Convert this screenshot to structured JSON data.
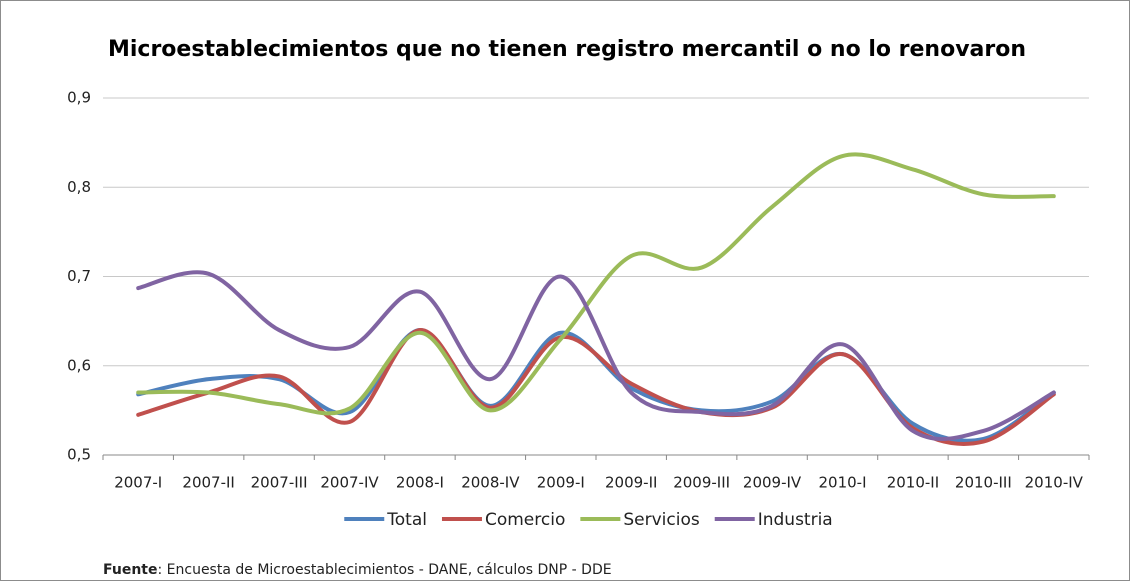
{
  "chart_data": {
    "type": "line",
    "title": "Microestablecimientos que no tienen registro mercantil o no lo renovaron",
    "categories": [
      "2007-I",
      "2007-II",
      "2007-III",
      "2007-IV",
      "2008-I",
      "2008-IV",
      "2009-I",
      "2009-II",
      "2009-III",
      "2009-IV",
      "2010-I",
      "2010-II",
      "2010-III",
      "2010-IV"
    ],
    "series": [
      {
        "name": "Total",
        "color": "#4f81bd",
        "values": [
          0.568,
          0.585,
          0.585,
          0.548,
          0.64,
          0.555,
          0.637,
          0.575,
          0.55,
          0.56,
          0.613,
          0.535,
          0.518,
          0.57
        ]
      },
      {
        "name": "Comercio",
        "color": "#c0504d",
        "values": [
          0.545,
          0.57,
          0.588,
          0.537,
          0.64,
          0.553,
          0.632,
          0.58,
          0.548,
          0.553,
          0.613,
          0.53,
          0.515,
          0.568
        ]
      },
      {
        "name": "Servicios",
        "color": "#9bbb59",
        "values": [
          0.57,
          0.57,
          0.557,
          0.552,
          0.637,
          0.55,
          0.63,
          0.723,
          0.71,
          0.778,
          0.835,
          0.82,
          0.792,
          0.79
        ]
      },
      {
        "name": "Industria",
        "color": "#8064a2",
        "values": [
          0.687,
          0.703,
          0.64,
          0.621,
          0.683,
          0.585,
          0.7,
          0.57,
          0.548,
          0.555,
          0.624,
          0.527,
          0.527,
          0.57
        ]
      }
    ],
    "ylim": [
      0.5,
      0.9
    ],
    "yticks": [
      {
        "value": 0.5,
        "label": "0,5"
      },
      {
        "value": 0.6,
        "label": "0,6"
      },
      {
        "value": 0.7,
        "label": "0,7"
      },
      {
        "value": 0.8,
        "label": "0,8"
      },
      {
        "value": 0.9,
        "label": "0,9"
      }
    ],
    "grid": true,
    "smooth": true,
    "legend": "bottom",
    "source_label": "Fuente",
    "source_text": ": Encuesta de Microestablecimientos - DANE, cálculos DNP - DDE"
  }
}
